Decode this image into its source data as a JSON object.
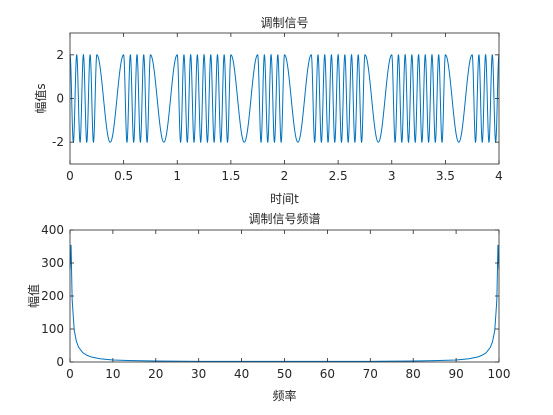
{
  "chart_data": [
    {
      "type": "line",
      "title": "调制信号",
      "xlabel": "时间t",
      "ylabel": "幅值s",
      "xlim": [
        0,
        4
      ],
      "ylim": [
        -3,
        3
      ],
      "xticks": [
        0,
        0.5,
        1,
        1.5,
        2,
        2.5,
        3,
        3.5,
        4
      ],
      "xtick_labels": [
        "0",
        "0.5",
        "1",
        "1.5",
        "2",
        "2.5",
        "3",
        "3.5",
        "4"
      ],
      "yticks": [
        -2,
        0,
        2
      ],
      "ytick_labels": [
        "-2",
        "0",
        "2"
      ],
      "box": true,
      "grid": false,
      "series": [
        {
          "color": "#0072bd",
          "amplitude": 2,
          "bit_duration": 0.25,
          "bits": [
            1,
            0,
            1,
            0,
            1,
            1,
            0,
            1,
            0,
            1,
            1,
            0,
            1,
            1,
            0,
            1
          ],
          "carrier_freq_low": 4,
          "carrier_freq_high": 16
        }
      ]
    },
    {
      "type": "line",
      "title": "调制信号频谱",
      "xlabel": "频率",
      "ylabel": "幅值",
      "xlim": [
        0,
        100
      ],
      "ylim": [
        0,
        400
      ],
      "xticks": [
        0,
        10,
        20,
        30,
        40,
        50,
        60,
        70,
        80,
        90,
        100
      ],
      "xtick_labels": [
        "0",
        "10",
        "20",
        "30",
        "40",
        "50",
        "60",
        "70",
        "80",
        "90",
        "100"
      ],
      "yticks": [
        0,
        100,
        200,
        300,
        400
      ],
      "ytick_labels": [
        "0",
        "100",
        "200",
        "300",
        "400"
      ],
      "box": true,
      "grid": false,
      "series": [
        {
          "color": "#0072bd",
          "x": [
            0,
            0.25,
            0.5,
            0.75,
            1,
            1.5,
            2,
            3,
            4,
            5,
            7,
            10,
            15,
            20,
            30,
            40,
            50,
            60,
            70,
            80,
            85,
            90,
            93,
            95,
            96,
            97,
            98,
            98.5,
            99,
            99.25,
            99.5,
            99.75,
            100
          ],
          "y": [
            280,
            355,
            190,
            140,
            95,
            62,
            45,
            28,
            20,
            15,
            10,
            6,
            4,
            3,
            2,
            2,
            2,
            2,
            2,
            3,
            4,
            6,
            10,
            15,
            20,
            28,
            45,
            62,
            95,
            140,
            190,
            355,
            280
          ]
        }
      ]
    }
  ]
}
